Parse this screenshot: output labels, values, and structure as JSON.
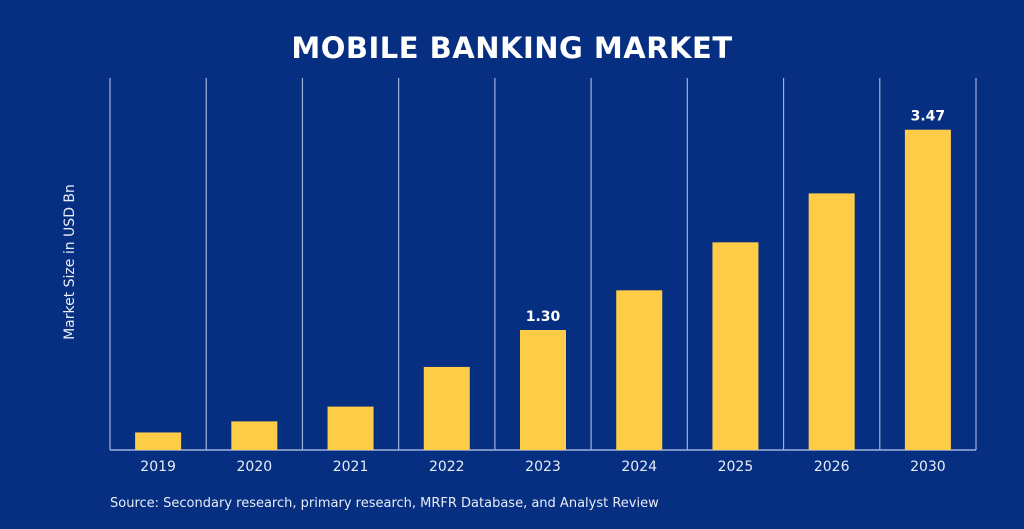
{
  "chart_data": {
    "type": "bar",
    "title": "MOBILE BANKING MARKET",
    "ylabel": "Market Size in USD Bn",
    "xlabel": "",
    "categories": [
      "2019",
      "2020",
      "2021",
      "2022",
      "2023",
      "2024",
      "2025",
      "2026",
      "2030"
    ],
    "values": [
      0.19,
      0.31,
      0.47,
      0.9,
      1.3,
      1.73,
      2.25,
      2.78,
      3.47
    ],
    "data_labels": {
      "2023": "1.30",
      "2030": "3.47"
    },
    "ylim": [
      0,
      4.0
    ],
    "grid": "vertical separators between categories",
    "legend": "none",
    "colors": {
      "background": "#062f82",
      "bar": "#ffcc47",
      "grid": "#9fb1d8",
      "text": "#ffffff"
    }
  },
  "source": "Source: Secondary research, primary research, MRFR Database, and Analyst Review"
}
